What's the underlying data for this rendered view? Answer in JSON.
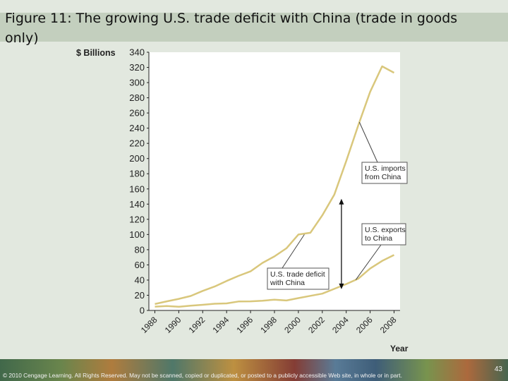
{
  "slide": {
    "title": "Figure 11: The growing U.S. trade deficit with China (trade in goods only)",
    "copyright": "© 2010 Cengage Learning. All Rights Reserved. May not be scanned, copied or duplicated, or posted to a publicly accessible Web site, in whole or in part.",
    "page_number": "43"
  },
  "chart_data": {
    "type": "line",
    "title": "",
    "ylabel": "$ Billions",
    "xlabel": "Year",
    "ylim": [
      0,
      340
    ],
    "xlim": [
      1987.5,
      2008.5
    ],
    "y_ticks": [
      0,
      20,
      40,
      60,
      80,
      100,
      120,
      140,
      160,
      180,
      200,
      220,
      240,
      260,
      280,
      300,
      320,
      340
    ],
    "x_ticks": [
      1988,
      1990,
      1992,
      1994,
      1996,
      1998,
      2000,
      2002,
      2004,
      2006,
      2008
    ],
    "grid": false,
    "legend": "none",
    "colors": {
      "line": "#d9c77c",
      "background": "#ffffff",
      "callout_fill": "#ffffff",
      "callout_border": "#555555"
    },
    "series": [
      {
        "name": "U.S. imports from China",
        "x": [
          1988,
          1989,
          1990,
          1991,
          1992,
          1993,
          1994,
          1995,
          1996,
          1997,
          1998,
          1999,
          2000,
          2001,
          2002,
          2003,
          2004,
          2005,
          2006,
          2007,
          2008
        ],
        "values": [
          8.5,
          12,
          15.2,
          19,
          25.7,
          31.5,
          38.8,
          45.5,
          51.5,
          62.6,
          71.2,
          81.8,
          100,
          102.3,
          125.2,
          152.4,
          196.7,
          243.5,
          287.8,
          321.4,
          313
        ]
      },
      {
        "name": "U.S. exports to China",
        "x": [
          1988,
          1989,
          1990,
          1991,
          1992,
          1993,
          1994,
          1995,
          1996,
          1997,
          1998,
          1999,
          2000,
          2001,
          2002,
          2003,
          2004,
          2005,
          2006,
          2007,
          2008
        ],
        "values": [
          5,
          5.8,
          4.8,
          6.3,
          7.4,
          8.8,
          9.3,
          11.8,
          12,
          12.8,
          14.2,
          13.1,
          16.3,
          19.2,
          22.1,
          28.4,
          34.7,
          41.8,
          55.2,
          65.2,
          73
        ]
      }
    ],
    "annotations": [
      {
        "label": "U.S. imports from China",
        "target_series": 0,
        "target_x": 2005.1
      },
      {
        "label": "U.S. exports to China",
        "target_series": 1,
        "target_x": 2004.8
      },
      {
        "label": "U.S. trade deficit with China",
        "target_x": 2000.5,
        "target_y": 100
      },
      {
        "label": "",
        "type": "double-arrow",
        "x": 2003.6,
        "y_from": 28,
        "y_to": 147
      }
    ]
  }
}
